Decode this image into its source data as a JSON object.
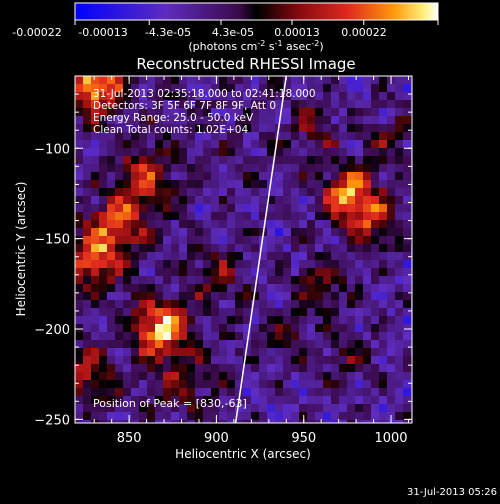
{
  "colorbar": {
    "ticks": [
      "-0.00022",
      "-0.00013",
      "-4.3e-05",
      "4.3e-05",
      "0.00013",
      "0.00022"
    ],
    "units_main": "(photons cm",
    "units_sup1": "-2",
    "units_mid": " s",
    "units_sup2": "-1",
    "units_end": " asec",
    "units_sup3": "-2",
    "units_close": ")"
  },
  "chart_data": {
    "type": "heatmap",
    "title": "Reconstructed RHESSI Image",
    "xlabel": "Heliocentric X (arcsec)",
    "ylabel": "Heliocentric Y (arcsec)",
    "xlim": [
      819,
      1012
    ],
    "ylim": [
      -252,
      -60
    ],
    "xticks": [
      850,
      900,
      950,
      1000
    ],
    "yticks": [
      -250,
      -200,
      -150,
      -100
    ],
    "color_range": [
      -0.00022,
      0.00022
    ],
    "colormap": "blue-purple-red-orange-yellow-white",
    "annotations": [
      "31-Jul-2013 02:35:18.000 to 02:41:18.000",
      "Detectors: 3F 5F 6F 7F 8F 9F, Att 0",
      "Energy Range: 25.0 - 50.0 keV",
      "Clean    Total counts: 1.02E+04"
    ],
    "peak_label": "Position of Peak = [830,-63]",
    "peak": [
      830,
      -63
    ],
    "sources": [
      {
        "x": 830,
        "y": -65,
        "value": 0.00022
      },
      {
        "x": 868,
        "y": -200,
        "value": 0.00021
      },
      {
        "x": 830,
        "y": -160,
        "value": 0.00017
      },
      {
        "x": 845,
        "y": -140,
        "value": 0.00014
      },
      {
        "x": 975,
        "y": -125,
        "value": 0.00019
      },
      {
        "x": 990,
        "y": -140,
        "value": 0.00013
      },
      {
        "x": 860,
        "y": -115,
        "value": 0.00012
      },
      {
        "x": 825,
        "y": -225,
        "value": 0.00011
      },
      {
        "x": 955,
        "y": -90,
        "value": 8e-05
      },
      {
        "x": 960,
        "y": -175,
        "value": 9e-05
      },
      {
        "x": 940,
        "y": -205,
        "value": 7e-05
      },
      {
        "x": 880,
        "y": -230,
        "value": 8e-05
      },
      {
        "x": 900,
        "y": -170,
        "value": 7e-05
      },
      {
        "x": 1000,
        "y": -95,
        "value": 7e-05
      },
      {
        "x": 975,
        "y": -215,
        "value": 6e-05
      }
    ],
    "limb": {
      "x_top": 940,
      "y_top": -60,
      "x_bottom": 911,
      "y_bottom": -252
    }
  },
  "timestamp": "31-Jul-2013 05:26"
}
